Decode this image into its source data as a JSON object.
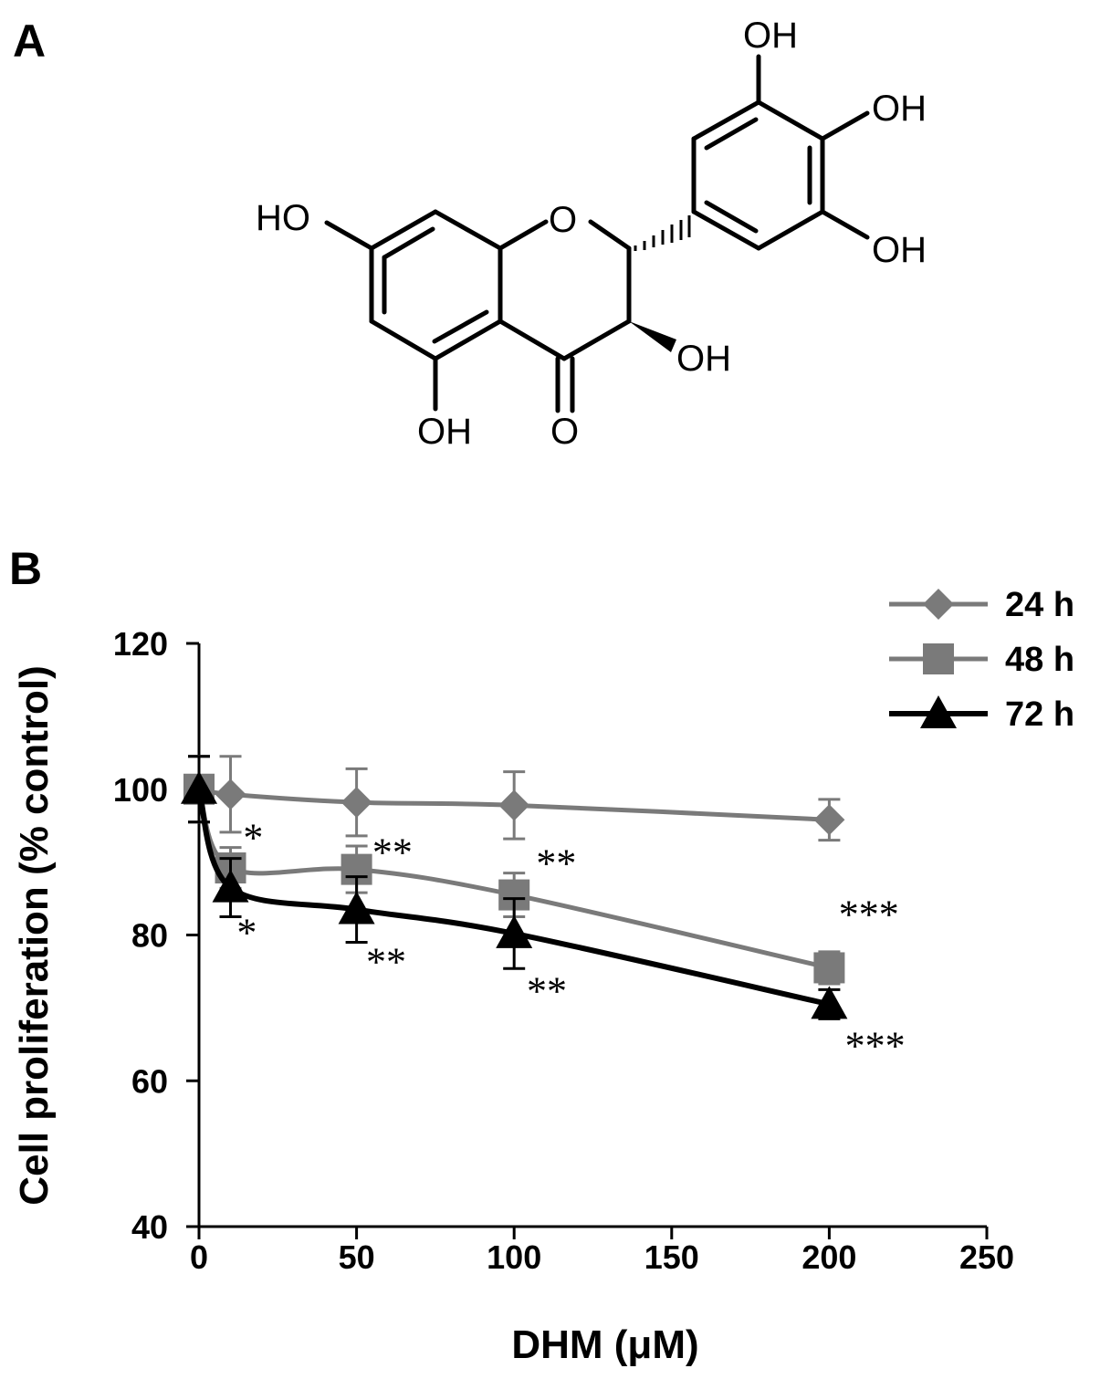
{
  "panel_a": {
    "label": "A",
    "structure_labels": {
      "oh_top": "OH",
      "oh_right": "OH",
      "oh_lower_right": "OH",
      "ho_left": "HO",
      "ring_oxygen": "O",
      "oh_c3": "OH",
      "oh_c5": "OH",
      "carbonyl_o": "O"
    }
  },
  "panel_b": {
    "label": "B"
  },
  "chart_data": {
    "type": "line",
    "xlabel": "DHM (μM)",
    "ylabel": "Cell proliferation (% control)",
    "xlim": [
      0,
      250
    ],
    "ylim": [
      40,
      120
    ],
    "xticks": [
      0,
      50,
      100,
      150,
      200,
      250
    ],
    "yticks": [
      40,
      60,
      80,
      100,
      120
    ],
    "grid": false,
    "legend_position": "top-right",
    "series": [
      {
        "name": "24 h",
        "color": "#7a7a7a",
        "marker": "diamond",
        "x": [
          0,
          10,
          50,
          100,
          200
        ],
        "y": [
          100,
          99.3,
          98.2,
          97.8,
          95.8
        ],
        "error": [
          4.5,
          5.2,
          4.6,
          4.6,
          2.8
        ]
      },
      {
        "name": "48 h",
        "color": "#7a7a7a",
        "marker": "square",
        "x": [
          0,
          10,
          50,
          100,
          200
        ],
        "y": [
          100,
          89.2,
          89.0,
          85.5,
          75.5
        ],
        "error": [
          4.5,
          2.8,
          3.2,
          3.0,
          2.2
        ]
      },
      {
        "name": "72 h",
        "color": "#000000",
        "marker": "triangle",
        "x": [
          0,
          10,
          50,
          100,
          200
        ],
        "y": [
          100,
          86.5,
          83.5,
          80.2,
          70.5
        ],
        "error": [
          4.5,
          4.0,
          4.5,
          4.8,
          2.0
        ]
      }
    ],
    "annotations": [
      {
        "text": "*",
        "x": 14,
        "y": 91.5
      },
      {
        "text": "*",
        "x": 12,
        "y": 78.5
      },
      {
        "text": "**",
        "x": 55,
        "y": 89.5
      },
      {
        "text": "**",
        "x": 53,
        "y": 74.5
      },
      {
        "text": "**",
        "x": 107,
        "y": 88.0
      },
      {
        "text": "**",
        "x": 104,
        "y": 70.5
      },
      {
        "text": "***",
        "x": 203,
        "y": 81.0
      },
      {
        "text": "***",
        "x": 205,
        "y": 63.0
      }
    ]
  }
}
